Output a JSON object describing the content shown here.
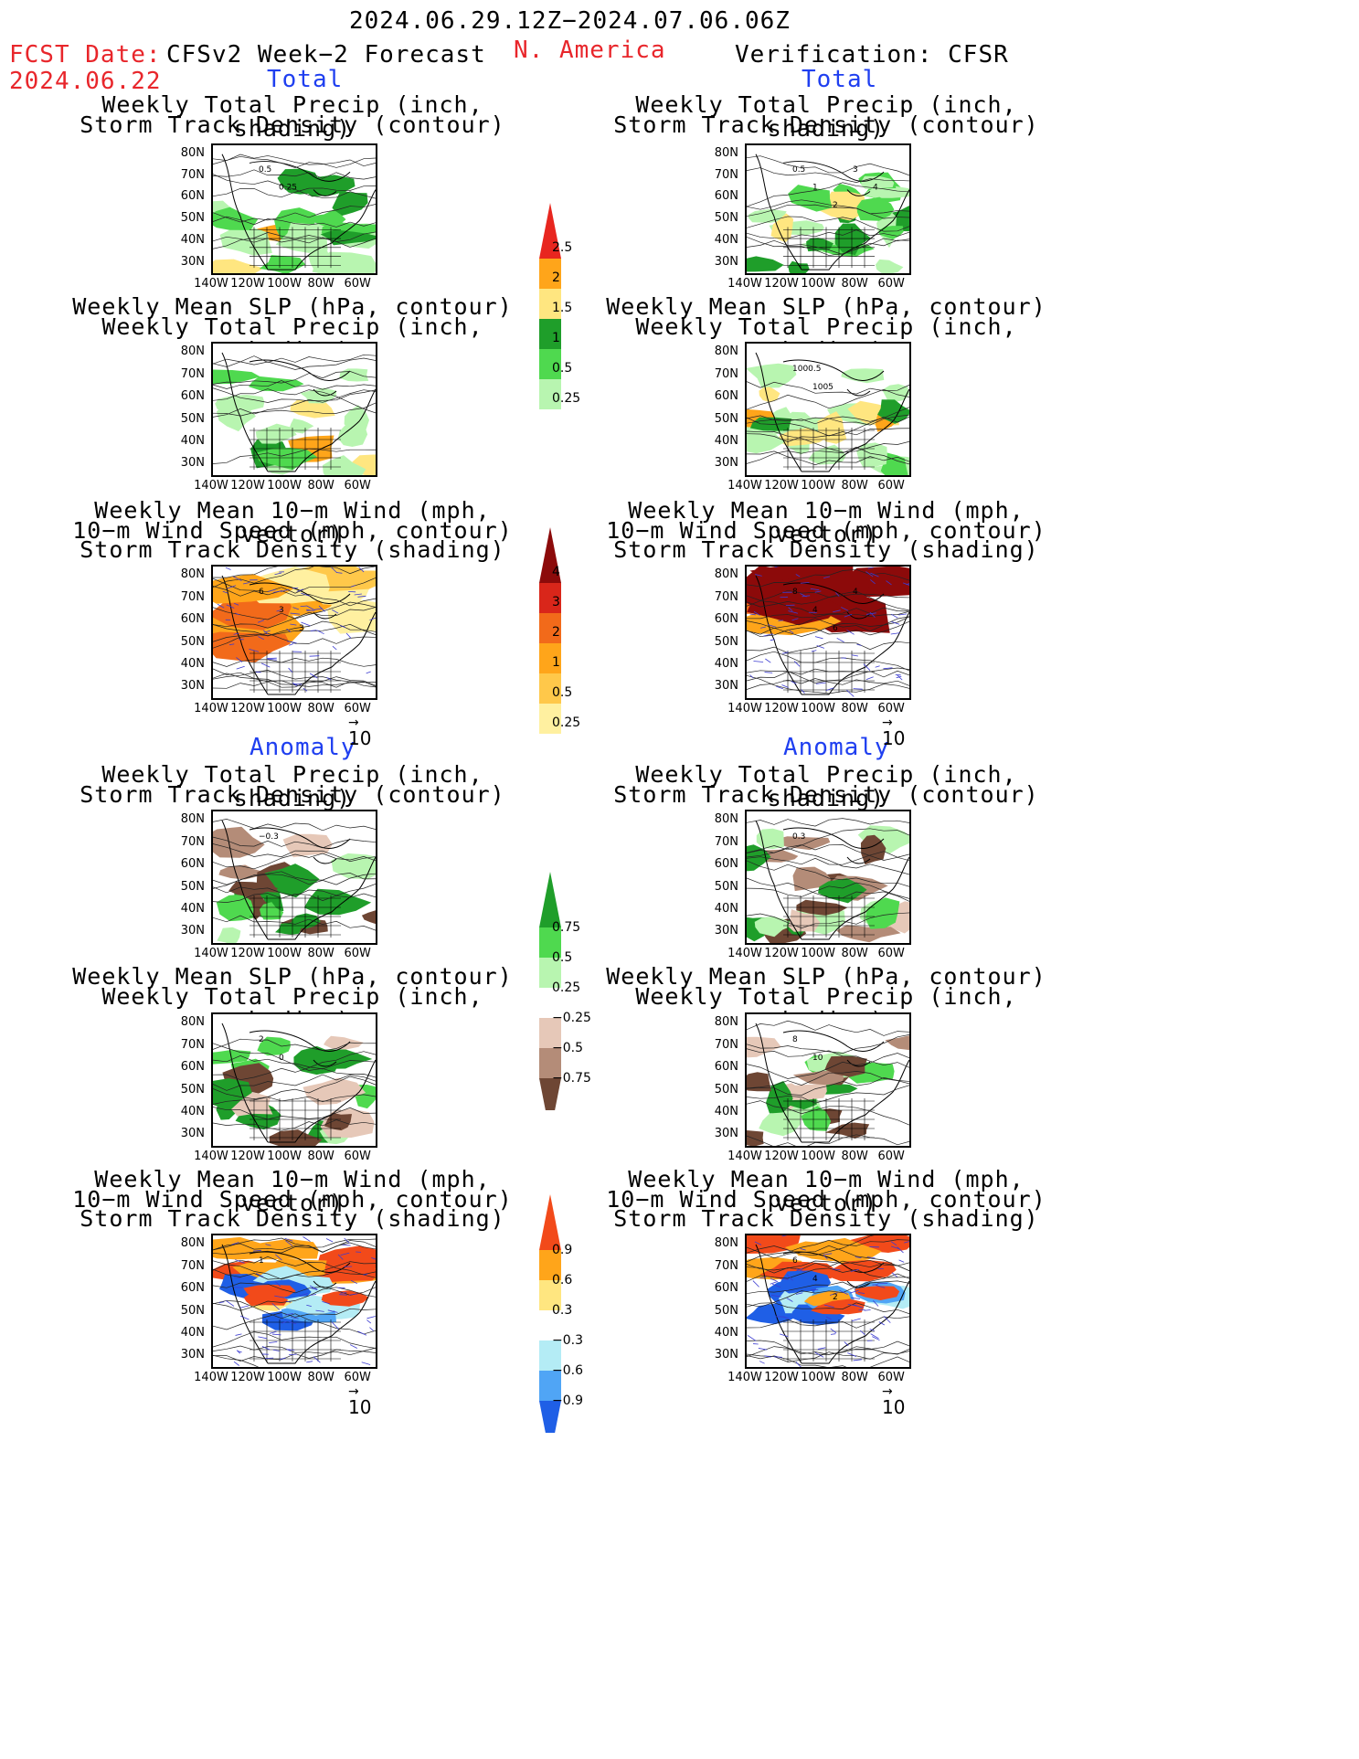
{
  "header": {
    "period": "2024.06.29.12Z−2024.07.06.06Z",
    "fcst_label": "FCST Date:",
    "fcst_date": "2024.06.22",
    "forecast_title": "CFSv2 Week−2 Forecast",
    "region": "N. America",
    "verification_title": "Verification: CFSR"
  },
  "sections": {
    "total": "Total",
    "anomaly": "Anomaly"
  },
  "titles": {
    "precip_storm": [
      "Weekly Total Precip (inch, shading)",
      "Storm Track Density (contour)"
    ],
    "slp_precip": [
      "Weekly Mean SLP (hPa, contour)",
      "Weekly Total Precip (inch, shading)"
    ],
    "wind_storm": [
      "Weekly Mean 10−m Wind (mph, vector)",
      "10−m Wind Speed (mph, contour)",
      "Storm Track Density (shading)"
    ]
  },
  "lat_labels": [
    "80N",
    "70N",
    "60N",
    "50N",
    "40N",
    "30N"
  ],
  "lon_labels": [
    "140W",
    "120W",
    "100W",
    "80W",
    "60W"
  ],
  "vector_ref": "10",
  "colorbars": [
    {
      "id": "total-precip",
      "labels": [
        "2.5",
        "2",
        "1.5",
        "1",
        "0.5",
        "0.25"
      ],
      "colors": [
        "#e8261f",
        "#ffa51a",
        "#ffe680",
        "#1f9e2a",
        "#4fd94f",
        "#b8f5b0"
      ]
    },
    {
      "id": "total-storm",
      "labels": [
        "4",
        "3",
        "2",
        "1",
        "0.5",
        "0.25"
      ],
      "colors": [
        "#8c0a0a",
        "#d9261a",
        "#f26a1a",
        "#ffa51a",
        "#ffc84a",
        "#fff0a0"
      ]
    },
    {
      "id": "anom-precip",
      "labels": [
        "0.75",
        "0.5",
        "0.25",
        "−0.25",
        "−0.5",
        "−0.75"
      ],
      "colors": [
        "#1f9e2a",
        "#4fd94f",
        "#b8f5b0",
        "#ffffff",
        "#e6c8b8",
        "#b48c78",
        "#6e4634"
      ]
    },
    {
      "id": "anom-storm",
      "labels": [
        "0.9",
        "0.6",
        "0.3",
        "−0.3",
        "−0.6",
        "−0.9"
      ],
      "colors": [
        "#f24a1a",
        "#ffa51a",
        "#ffe680",
        "#ffffff",
        "#b4ecf5",
        "#50a5f5",
        "#1f5fe6"
      ]
    }
  ],
  "contour_labels": {
    "f_precip": [
      "0.5",
      "0.25"
    ],
    "v_precip": [
      "0.5",
      "1",
      "2",
      "3",
      "4"
    ],
    "v_slp": [
      "1000.5",
      "1005"
    ],
    "f_wind": [
      "6",
      "3",
      "3"
    ],
    "v_wind": [
      "8",
      "4",
      "6",
      "4"
    ],
    "fa_precip": [
      "−0.3"
    ],
    "va_precip": [
      "0.3"
    ],
    "fa_slp": [
      "2",
      "0"
    ],
    "va_slp": [
      "8",
      "10"
    ],
    "fa_wind": [
      "1"
    ],
    "va_wind": [
      "6",
      "4",
      "2"
    ]
  }
}
